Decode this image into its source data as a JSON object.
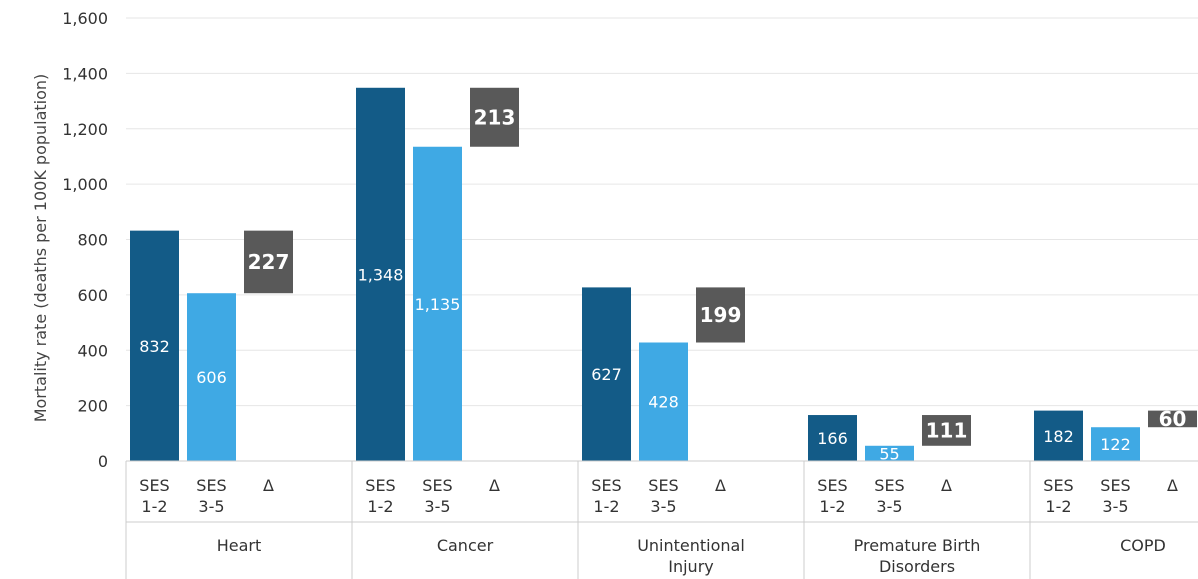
{
  "chart_data": {
    "type": "bar",
    "ylabel": "Mortality rate (deaths per 100K population)",
    "ylim": [
      0,
      1600
    ],
    "yticks": [
      "0",
      "200",
      "400",
      "600",
      "800",
      "1,000",
      "1,200",
      "1,400",
      "1,600"
    ],
    "grid": true,
    "subcategories": [
      {
        "line1": "SES",
        "line2": "1-2"
      },
      {
        "line1": "SES",
        "line2": "3-5"
      },
      {
        "line1": "Δ",
        "line2": ""
      }
    ],
    "categories": [
      {
        "name": [
          "Heart"
        ],
        "ses12": 832,
        "ses35": 606,
        "delta": 227,
        "ses12_label": "832",
        "ses35_label": "606",
        "delta_label": "227"
      },
      {
        "name": [
          "Cancer"
        ],
        "ses12": 1348,
        "ses35": 1135,
        "delta": 213,
        "ses12_label": "1,348",
        "ses35_label": "1,135",
        "delta_label": "213"
      },
      {
        "name": [
          "Unintentional",
          "Injury"
        ],
        "ses12": 627,
        "ses35": 428,
        "delta": 199,
        "ses12_label": "627",
        "ses35_label": "428",
        "delta_label": "199"
      },
      {
        "name": [
          "Premature Birth",
          "Disorders"
        ],
        "ses12": 166,
        "ses35": 55,
        "delta": 111,
        "ses12_label": "166",
        "ses35_label": "55",
        "delta_label": "111"
      },
      {
        "name": [
          "COPD"
        ],
        "ses12": 182,
        "ses35": 122,
        "delta": 60,
        "ses12_label": "182",
        "ses35_label": "122",
        "delta_label": "60"
      }
    ],
    "colors": {
      "ses12": "#135B87",
      "ses35": "#3FA9E4",
      "delta": "#595959",
      "grid": "#e6e6e6",
      "axis": "#cccccc"
    }
  }
}
